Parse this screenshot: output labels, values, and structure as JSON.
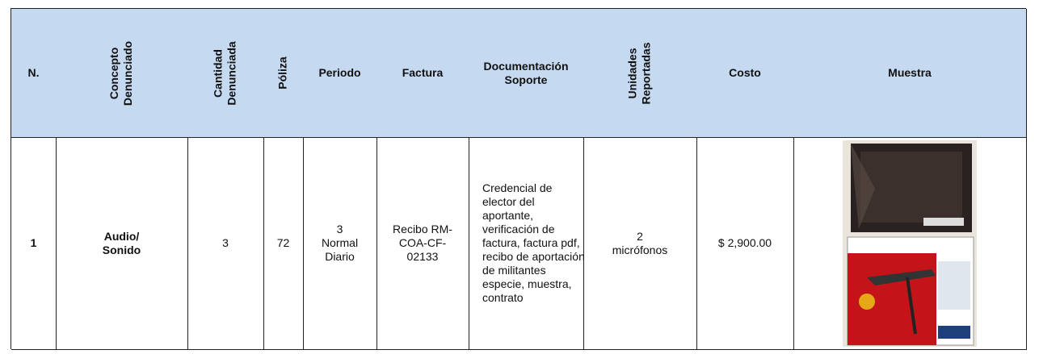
{
  "table": {
    "header": [
      [
        "N."
      ],
      [
        "Concepto",
        "Denunciado"
      ],
      [
        "Cantidad",
        "Denunciada"
      ],
      [
        "Póliza"
      ],
      [
        "Periodo"
      ],
      [
        "Factura"
      ],
      [
        "Documentación",
        "Soporte"
      ],
      [
        "Unidades",
        "Reportadas"
      ],
      [
        "Costo"
      ],
      [
        "Muestra"
      ]
    ],
    "rows": [
      [
        [
          "1"
        ],
        [
          "Audio/",
          "Sonido"
        ],
        [
          "3"
        ],
        [
          "72"
        ],
        [
          "3",
          "Normal",
          "Diario"
        ],
        [
          "Recibo RM-",
          "COA-CF-",
          "02133"
        ],
        [
          "Credencial de",
          "elector del",
          "aportante,",
          "verificación de",
          "factura, factura pdf,",
          "recibo de aportación",
          "de militantes",
          "especie, muestra,",
          "contrato"
        ],
        [
          "2",
          "micrófonos"
        ],
        [
          "$ 2,900.00"
        ],
        []
      ]
    ]
  }
}
